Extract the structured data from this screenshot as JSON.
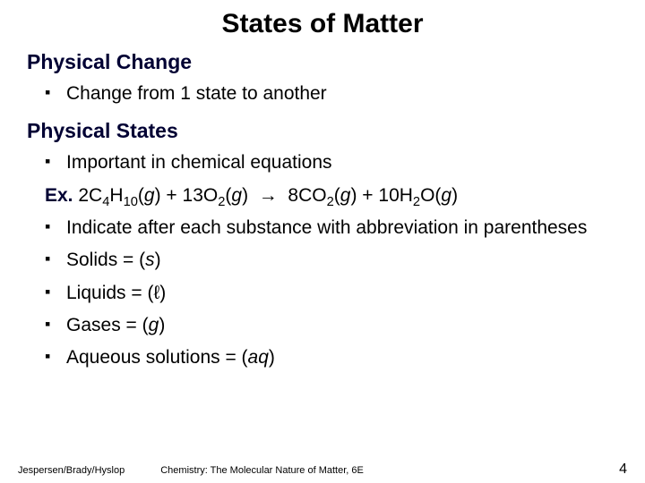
{
  "title": "States of Matter",
  "sections": [
    {
      "heading": "Physical Change",
      "items": [
        {
          "type": "bullet",
          "html": "Change from 1 state to another"
        }
      ]
    },
    {
      "heading": "Physical States",
      "items": [
        {
          "type": "bullet",
          "html": "Important in chemical equations"
        },
        {
          "type": "plain",
          "html": "<span class=\"ex-label\">Ex.</span> 2C<sub>4</sub>H<sub>10</sub>(<span class=\"ital\">g</span>) + 13O<sub>2</sub>(<span class=\"ital\">g</span>) &nbsp;<span class=\"arrow\">→</span>&nbsp; 8CO<sub>2</sub>(<span class=\"ital\">g</span>) + 10H<sub>2</sub>O(<span class=\"ital\">g</span>)"
        },
        {
          "type": "bullet",
          "html": "Indicate after each substance with abbreviation in parentheses"
        },
        {
          "type": "bullet",
          "html": "Solids = (<span class=\"ital\">s</span>)"
        },
        {
          "type": "bullet",
          "html": "Liquids = (ℓ)"
        },
        {
          "type": "bullet",
          "html": "Gases = (<span class=\"ital\">g</span>)"
        },
        {
          "type": "bullet",
          "html": "Aqueous solutions = (<span class=\"ital\">aq</span>)"
        }
      ]
    }
  ],
  "footer": {
    "authors": "Jespersen/Brady/Hyslop",
    "book": "Chemistry: The Molecular Nature of Matter, 6E",
    "page": "4"
  }
}
